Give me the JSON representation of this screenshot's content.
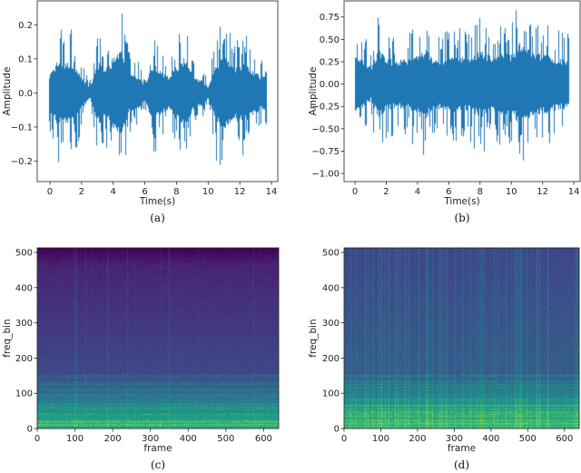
{
  "chart_data": [
    {
      "id": "a",
      "type": "line",
      "caption": "(a)",
      "xlabel": "Time(s)",
      "ylabel": "Amplitude",
      "xlim": [
        -0.8,
        14.4
      ],
      "ylim": [
        -0.26,
        0.27
      ],
      "xticks": [
        0,
        2,
        4,
        6,
        8,
        10,
        12,
        14
      ],
      "xtick_labels": [
        "0",
        "2",
        "4",
        "6",
        "8",
        "10",
        "12",
        "14"
      ],
      "yticks": [
        -0.2,
        -0.1,
        0.0,
        0.1,
        0.2
      ],
      "ytick_labels": [
        "−0.2",
        "−0.1",
        "0.0",
        "0.1",
        "0.2"
      ],
      "duration": 13.7,
      "color": "#1f77b4",
      "approx_peak_envelope": {
        "t": [
          0,
          0.5,
          1,
          1.5,
          2,
          2.5,
          3,
          3.5,
          4,
          4.5,
          5,
          5.5,
          6,
          6.5,
          7,
          7.5,
          8,
          8.5,
          9,
          9.5,
          10,
          10.5,
          11,
          11.5,
          12,
          12.5,
          13,
          13.5
        ],
        "amp": [
          0.12,
          0.2,
          0.18,
          0.19,
          0.1,
          0.03,
          0.19,
          0.15,
          0.22,
          0.25,
          0.12,
          0.1,
          0.05,
          0.18,
          0.13,
          0.1,
          0.17,
          0.22,
          0.1,
          0.08,
          0.04,
          0.19,
          0.23,
          0.16,
          0.18,
          0.17,
          0.12,
          0.1
        ]
      }
    },
    {
      "id": "b",
      "type": "line",
      "caption": "(b)",
      "xlabel": "Time(s)",
      "ylabel": "Amplitude",
      "xlim": [
        -0.7,
        14.4
      ],
      "ylim": [
        -1.09,
        0.93
      ],
      "xticks": [
        0,
        2,
        4,
        6,
        8,
        10,
        12,
        14
      ],
      "xtick_labels": [
        "0",
        "2",
        "4",
        "6",
        "8",
        "10",
        "12",
        "14"
      ],
      "yticks": [
        -1.0,
        -0.75,
        -0.5,
        -0.25,
        0.0,
        0.25,
        0.5,
        0.75
      ],
      "ytick_labels": [
        "−1.00",
        "−0.75",
        "−0.50",
        "−0.25",
        "0.00",
        "0.25",
        "0.50",
        "0.75"
      ],
      "duration": 13.7,
      "color": "#1f77b4",
      "approx_peak_envelope": {
        "t": [
          0,
          0.5,
          1,
          1.5,
          2,
          2.5,
          3,
          3.5,
          4,
          4.5,
          5,
          5.5,
          6,
          6.5,
          7,
          7.5,
          8,
          8.5,
          9,
          9.5,
          10,
          10.5,
          11,
          11.5,
          12,
          12.5,
          13,
          13.5
        ],
        "amp": [
          0.6,
          0.6,
          0.4,
          0.83,
          0.6,
          0.55,
          0.6,
          0.6,
          0.75,
          0.8,
          0.55,
          0.6,
          0.6,
          0.65,
          0.6,
          0.7,
          0.75,
          0.7,
          0.65,
          0.7,
          0.7,
          0.95,
          0.8,
          0.7,
          0.7,
          0.65,
          0.6,
          0.6
        ]
      }
    },
    {
      "id": "c",
      "type": "heatmap",
      "caption": "(c)",
      "xlabel": "frame",
      "ylabel": "freq_bin",
      "xlim": [
        0,
        640
      ],
      "ylim": [
        0,
        513
      ],
      "xticks": [
        0,
        100,
        200,
        300,
        400,
        500,
        600
      ],
      "xtick_labels": [
        "0",
        "100",
        "200",
        "300",
        "400",
        "500",
        "600"
      ],
      "yticks": [
        0,
        100,
        200,
        300,
        400,
        500
      ],
      "ytick_labels": [
        "0",
        "100",
        "200",
        "300",
        "400",
        "500"
      ],
      "colormap": "viridis",
      "description_energy": "low"
    },
    {
      "id": "d",
      "type": "heatmap",
      "caption": "(d)",
      "xlabel": "frame",
      "ylabel": "freq_bin",
      "xlim": [
        0,
        640
      ],
      "ylim": [
        0,
        513
      ],
      "xticks": [
        0,
        100,
        200,
        300,
        400,
        500,
        600
      ],
      "xtick_labels": [
        "0",
        "100",
        "200",
        "300",
        "400",
        "500",
        "600"
      ],
      "yticks": [
        0,
        100,
        200,
        300,
        400,
        500
      ],
      "ytick_labels": [
        "0",
        "100",
        "200",
        "300",
        "400",
        "500"
      ],
      "colormap": "viridis",
      "description_energy": "high"
    }
  ]
}
